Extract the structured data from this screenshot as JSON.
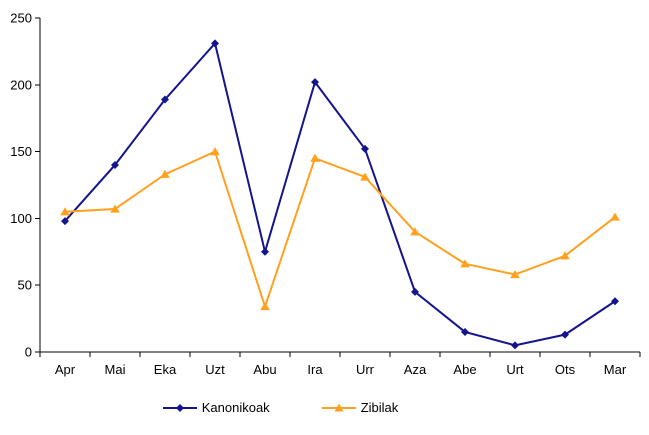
{
  "chart_data": {
    "type": "line",
    "title": "",
    "categories": [
      "Apr",
      "Mai",
      "Eka",
      "Uzt",
      "Abu",
      "Ira",
      "Urr",
      "Aza",
      "Abe",
      "Urt",
      "Ots",
      "Mar"
    ],
    "series": [
      {
        "name": "Kanonikoak",
        "color": "#14148F",
        "marker": "diamond",
        "values": [
          98,
          140,
          189,
          231,
          75,
          202,
          152,
          45,
          15,
          5,
          13,
          38
        ]
      },
      {
        "name": "Zibilak",
        "color": "#FFA01E",
        "marker": "triangle-up",
        "values": [
          105,
          107,
          133,
          150,
          34,
          145,
          131,
          90,
          66,
          58,
          72,
          101
        ]
      }
    ],
    "ylim": [
      0,
      250
    ],
    "yticks": [
      0,
      50,
      100,
      150,
      200,
      250
    ],
    "xlabel": "",
    "ylabel": "",
    "grid": false,
    "legend_position": "bottom",
    "axis_color": "#000000",
    "background_color": "#FFFFFF"
  }
}
